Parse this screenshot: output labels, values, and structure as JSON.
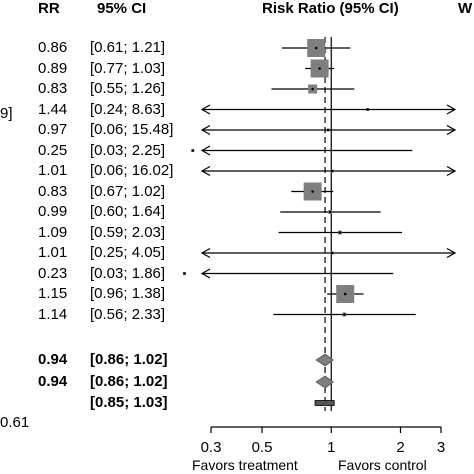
{
  "chart_data": {
    "type": "forest",
    "headers": {
      "rr": "RR",
      "ci": "95% CI",
      "plot": "Risk Ratio (95% CI)",
      "weight": "W"
    },
    "left_fragments": [
      "9]",
      "0.61"
    ],
    "studies": [
      {
        "rr_text": "0.86",
        "ci_text": "[0.61;  1.21]",
        "rr": 0.86,
        "lo": 0.61,
        "hi": 1.21,
        "weight": "large"
      },
      {
        "rr_text": "0.89",
        "ci_text": "[0.77;  1.03]",
        "rr": 0.89,
        "lo": 0.77,
        "hi": 1.03,
        "weight": "large"
      },
      {
        "rr_text": "0.83",
        "ci_text": "[0.55;  1.26]",
        "rr": 0.83,
        "lo": 0.55,
        "hi": 1.26,
        "weight": "medium"
      },
      {
        "rr_text": "1.44",
        "ci_text": "[0.24;  8.63]",
        "rr": 1.44,
        "lo": 0.24,
        "hi": 8.63,
        "weight": "tiny"
      },
      {
        "rr_text": "0.97",
        "ci_text": "[0.06; 15.48]",
        "rr": 0.97,
        "lo": 0.06,
        "hi": 15.48,
        "weight": "tiny"
      },
      {
        "rr_text": "0.25",
        "ci_text": "[0.03;  2.25]",
        "rr": 0.25,
        "lo": 0.03,
        "hi": 2.25,
        "weight": "tiny"
      },
      {
        "rr_text": "1.01",
        "ci_text": "[0.06; 16.02]",
        "rr": 1.01,
        "lo": 0.06,
        "hi": 16.02,
        "weight": "tiny"
      },
      {
        "rr_text": "0.83",
        "ci_text": "[0.67;  1.02]",
        "rr": 0.83,
        "lo": 0.67,
        "hi": 1.02,
        "weight": "large"
      },
      {
        "rr_text": "0.99",
        "ci_text": "[0.60;  1.64]",
        "rr": 0.99,
        "lo": 0.6,
        "hi": 1.64,
        "weight": "small"
      },
      {
        "rr_text": "1.09",
        "ci_text": "[0.59;  2.03]",
        "rr": 1.09,
        "lo": 0.59,
        "hi": 2.03,
        "weight": "small"
      },
      {
        "rr_text": "1.01",
        "ci_text": "[0.25;  4.05]",
        "rr": 1.01,
        "lo": 0.25,
        "hi": 4.05,
        "weight": "tiny"
      },
      {
        "rr_text": "0.23",
        "ci_text": "[0.03;  1.86]",
        "rr": 0.23,
        "lo": 0.03,
        "hi": 1.86,
        "weight": "tiny"
      },
      {
        "rr_text": "1.15",
        "ci_text": "[0.96;  1.38]",
        "rr": 1.15,
        "lo": 0.96,
        "hi": 1.38,
        "weight": "large"
      },
      {
        "rr_text": "1.14",
        "ci_text": "[0.56;  2.33]",
        "rr": 1.14,
        "lo": 0.56,
        "hi": 2.33,
        "weight": "small"
      }
    ],
    "summaries": [
      {
        "kind": "diamond",
        "rr_text": "0.94",
        "ci_text": "[0.86;  1.02]",
        "rr": 0.94,
        "lo": 0.86,
        "hi": 1.02
      },
      {
        "kind": "diamond",
        "rr_text": "0.94",
        "ci_text": "[0.86;  1.02]",
        "rr": 0.94,
        "lo": 0.86,
        "hi": 1.02
      },
      {
        "kind": "prediction",
        "rr_text": "",
        "ci_text": "[0.85;  1.03]",
        "lo": 0.85,
        "hi": 1.03
      }
    ],
    "x_axis": {
      "scale": "log",
      "ticks": [
        0.3,
        0.5,
        1,
        2,
        3
      ],
      "tick_labels": [
        "0.3",
        "0.5",
        "1",
        "2",
        "3"
      ],
      "range": [
        0.3,
        3
      ]
    },
    "axis_labels": {
      "left": "Favors treatment",
      "right": "Favors control"
    },
    "reference_line": 1,
    "pooled_line": 0.94
  }
}
